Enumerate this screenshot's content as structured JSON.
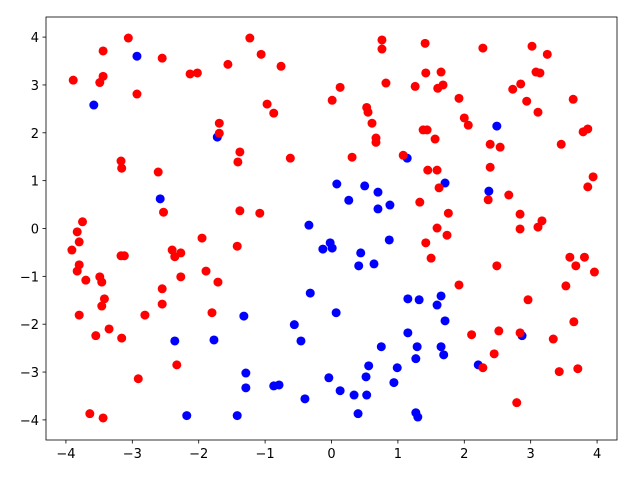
{
  "chart_data": {
    "type": "scatter",
    "xlim": [
      -4.3,
      4.3
    ],
    "ylim": [
      -4.42,
      4.42
    ],
    "xticks": [
      {
        "value": -4,
        "label": "−4"
      },
      {
        "value": -3,
        "label": "−3"
      },
      {
        "value": -2,
        "label": "−2"
      },
      {
        "value": -1,
        "label": "−1"
      },
      0,
      1,
      2,
      3,
      4
    ],
    "yticks": [
      {
        "value": -4,
        "label": "−4"
      },
      {
        "value": -3,
        "label": "−3"
      },
      {
        "value": -2,
        "label": "−2"
      },
      {
        "value": -1,
        "label": "−1"
      },
      0,
      1,
      2,
      3,
      4
    ],
    "series": [
      {
        "color": "#0000ff",
        "x": [
          -2.93,
          -3.58,
          -1.72,
          -2.58,
          2.49,
          1.14,
          0.08,
          0.26,
          0.5,
          0.7,
          1.71,
          2.37,
          0.88,
          0.7,
          -0.34,
          -0.02,
          -0.13,
          0.01,
          0.87,
          0.44,
          0.41,
          0.64,
          -0.32,
          0.07,
          -0.56,
          -0.46,
          1.15,
          1.32,
          1.65,
          1.59,
          1.71,
          1.15,
          0.75,
          1.29,
          1.65,
          1.27,
          1.69,
          0.99,
          0.56,
          0.52,
          0.94,
          -0.04,
          0.13,
          0.34,
          0.53,
          0.4,
          1.27,
          1.3,
          -0.4,
          -0.87,
          -0.79,
          -1.29,
          -1.29,
          -1.42,
          -2.18,
          -1.32,
          -1.77,
          -2.36,
          2.21,
          2.87
        ],
        "y": [
          3.6,
          2.58,
          1.91,
          0.62,
          2.14,
          1.47,
          0.93,
          0.59,
          0.89,
          0.76,
          0.95,
          0.78,
          0.49,
          0.41,
          0.07,
          -0.3,
          -0.43,
          -0.41,
          -0.24,
          -0.51,
          -0.78,
          -0.74,
          -1.35,
          -1.76,
          -2.01,
          -2.35,
          -1.47,
          -1.49,
          -1.41,
          -1.6,
          -1.93,
          -2.18,
          -2.47,
          -2.47,
          -2.47,
          -2.72,
          -2.64,
          -2.91,
          -2.87,
          -3.1,
          -3.22,
          -3.12,
          -3.39,
          -3.48,
          -3.48,
          -3.87,
          -3.85,
          -3.94,
          -3.56,
          -3.29,
          -3.27,
          -3.02,
          -3.33,
          -3.91,
          -3.91,
          -1.83,
          -2.33,
          -2.35,
          -2.85,
          -2.24
        ]
      },
      {
        "color": "#ff0000",
        "x": [
          -3.89,
          -3.44,
          -3.44,
          -3.49,
          -3.06,
          -2.93,
          -2.55,
          -2.13,
          -2.02,
          -1.56,
          -1.23,
          -1.06,
          -0.76,
          -0.97,
          -0.87,
          -1.69,
          -1.69,
          -1.38,
          -1.41,
          -0.62,
          0.01,
          0.13,
          0.53,
          0.55,
          0.61,
          0.67,
          0.67,
          0.76,
          0.76,
          0.82,
          0.31,
          1.08,
          1.26,
          1.41,
          1.42,
          1.65,
          1.6,
          1.68,
          1.92,
          2.0,
          2.06,
          2.28,
          2.39,
          2.54,
          2.39,
          2.36,
          2.67,
          2.73,
          2.85,
          2.94,
          3.02,
          3.08,
          3.14,
          3.11,
          3.25,
          3.46,
          3.64,
          3.79,
          3.86,
          3.86,
          3.94,
          3.17,
          3.11,
          2.84,
          2.84,
          1.38,
          1.44,
          1.45,
          1.59,
          1.56,
          1.62,
          1.33,
          1.59,
          1.76,
          1.74,
          1.42,
          1.5,
          1.92,
          2.11,
          2.28,
          2.45,
          2.49,
          2.52,
          2.84,
          2.96,
          2.79,
          3.34,
          3.43,
          3.53,
          3.59,
          3.65,
          3.68,
          3.71,
          3.81,
          3.96,
          -3.91,
          -3.83,
          -3.75,
          -3.8,
          -3.8,
          -3.83,
          -3.7,
          -3.8,
          -3.49,
          -3.46,
          -3.42,
          -3.46,
          -3.55,
          -3.35,
          -3.64,
          -3.44,
          -3.17,
          -3.16,
          -3.17,
          -3.12,
          -3.16,
          -2.91,
          -2.81,
          -2.61,
          -2.53,
          -2.55,
          -2.55,
          -2.4,
          -2.36,
          -2.27,
          -2.33,
          -2.27,
          -1.95,
          -1.89,
          -1.8,
          -1.71,
          -1.38,
          -1.42,
          -1.08
        ],
        "y": [
          3.1,
          3.71,
          3.18,
          3.05,
          3.98,
          2.81,
          3.56,
          3.23,
          3.25,
          3.43,
          3.98,
          3.64,
          3.39,
          2.6,
          2.41,
          2.2,
          1.99,
          1.6,
          1.39,
          1.47,
          2.68,
          2.95,
          2.53,
          2.43,
          2.2,
          1.89,
          1.8,
          3.94,
          3.75,
          3.04,
          1.49,
          1.53,
          2.97,
          3.87,
          3.25,
          3.27,
          2.93,
          3.0,
          2.72,
          2.31,
          2.16,
          3.77,
          1.76,
          1.7,
          1.28,
          0.6,
          0.7,
          2.91,
          3.02,
          2.66,
          3.81,
          3.27,
          3.25,
          2.43,
          3.64,
          1.76,
          2.7,
          2.02,
          2.08,
          0.87,
          1.08,
          0.16,
          0.03,
          0.3,
          -0.01,
          2.06,
          2.06,
          1.22,
          1.22,
          1.87,
          0.85,
          0.55,
          0.01,
          0.32,
          -0.14,
          -0.3,
          -0.62,
          -1.18,
          -2.22,
          -2.91,
          -2.62,
          -0.78,
          -2.14,
          -2.18,
          -1.49,
          -3.64,
          -2.31,
          -2.99,
          -1.2,
          -0.6,
          -1.95,
          -0.78,
          -2.93,
          -0.6,
          -0.91,
          -0.45,
          -0.07,
          0.14,
          -0.28,
          -0.76,
          -0.89,
          -1.08,
          -1.81,
          -1.01,
          -1.12,
          -1.47,
          -1.62,
          -2.24,
          -2.1,
          -3.87,
          -3.96,
          1.41,
          1.26,
          -0.57,
          -0.57,
          -2.29,
          -3.14,
          -1.81,
          1.18,
          0.34,
          -1.26,
          -1.58,
          -0.45,
          -0.59,
          -0.51,
          -2.85,
          -1.01,
          -0.2,
          -0.89,
          -1.76,
          -1.12,
          0.37,
          -0.37,
          0.32
        ]
      }
    ]
  }
}
